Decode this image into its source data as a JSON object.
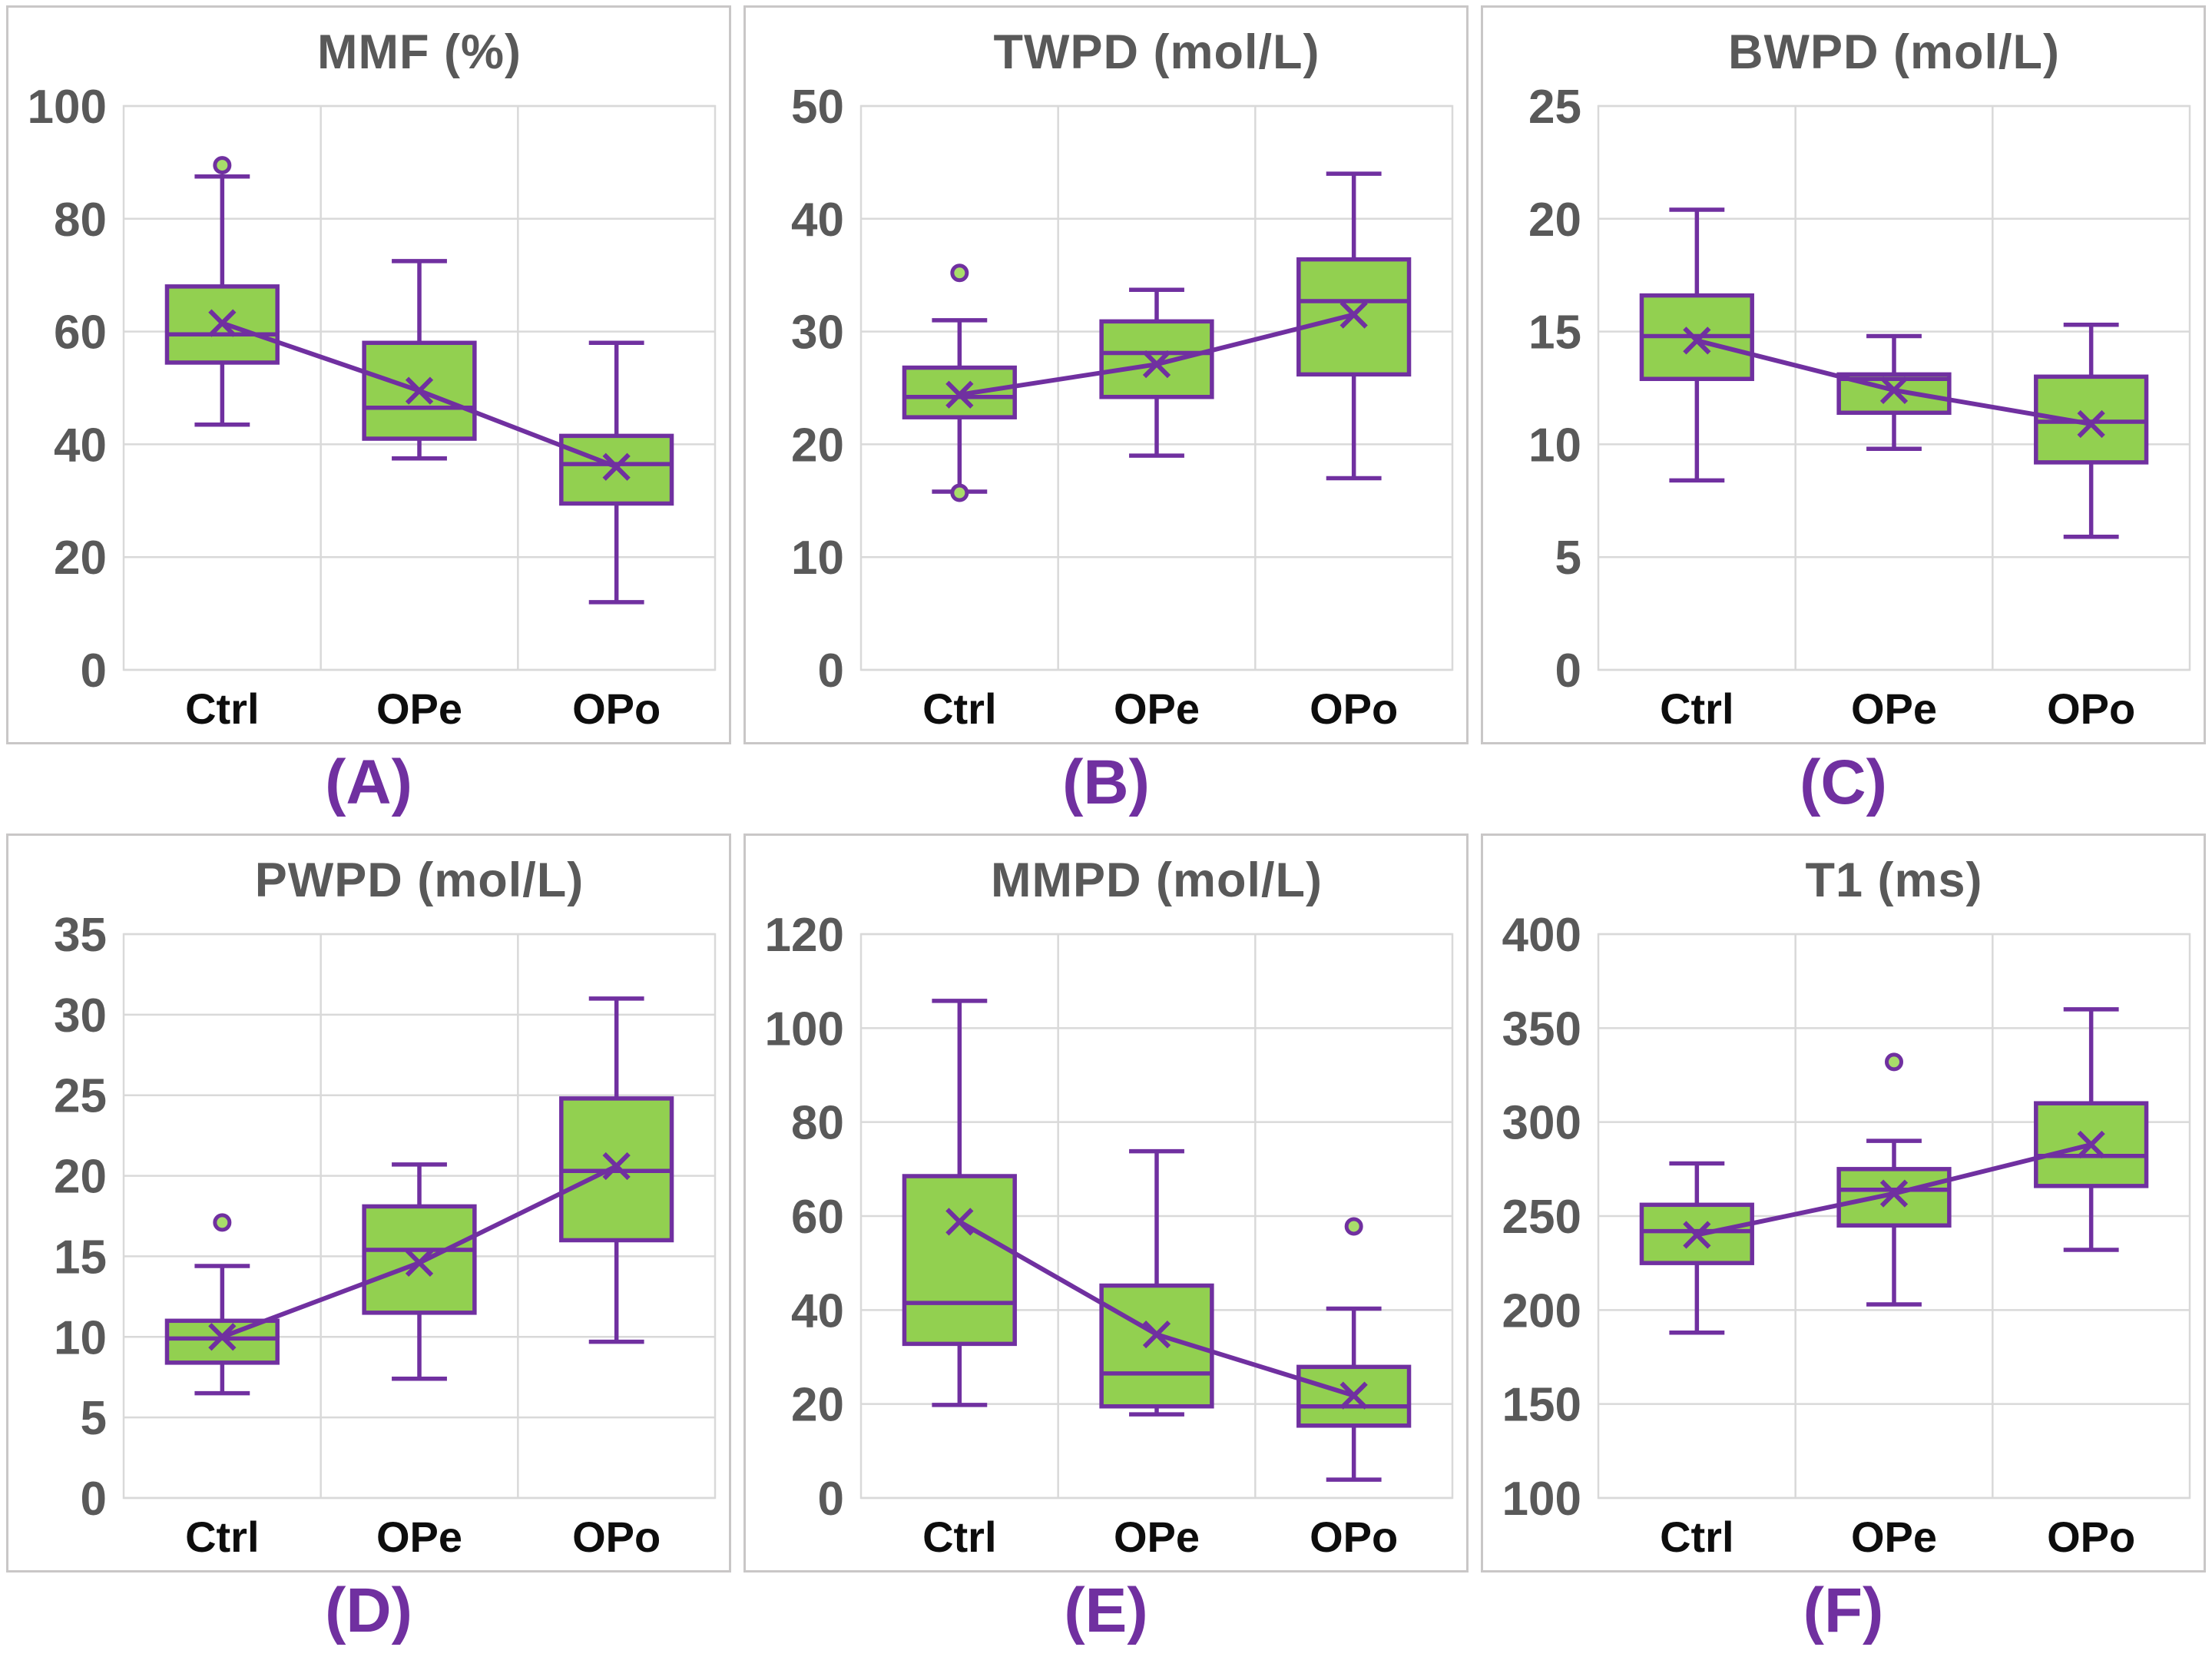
{
  "figure": {
    "kind": "box-plot-panel-grid",
    "rows": 2,
    "cols": 3,
    "background": "#ffffff"
  },
  "colors": {
    "box_fill": "#92d050",
    "box_border": "#7030a0",
    "whisker": "#7030a0",
    "median": "#7030a0",
    "mean_marker": "#7030a0",
    "mean_line": "#7030a0",
    "outlier_stroke": "#7030a0",
    "outlier_fill": "#a8dd6a",
    "gridline": "#d9d9d9",
    "plot_border": "#d9d9d9",
    "panel_border": "#c9c7c7",
    "title_text": "#595959",
    "tick_text": "#595959",
    "category_text": "#0d0d0d",
    "panel_letter_text": "#7030a0"
  },
  "chart_data": [
    {
      "id": "A",
      "type": "box",
      "title": "MMF (%)",
      "panel_label": "(A)",
      "categories": [
        "Ctrl",
        "OPe",
        "OPo"
      ],
      "ylim": [
        0,
        100
      ],
      "yticks": [
        0,
        20,
        40,
        60,
        80,
        100
      ],
      "grid": true,
      "legend": "none",
      "boxes": [
        {
          "category": "Ctrl",
          "whisker_low": 43.5,
          "q1": 54.5,
          "median": 59.5,
          "q3": 68.0,
          "whisker_high": 87.5,
          "mean": 61.5,
          "outliers": [
            89.5
          ]
        },
        {
          "category": "OPe",
          "whisker_low": 37.5,
          "q1": 41.0,
          "median": 46.5,
          "q3": 58.0,
          "whisker_high": 72.5,
          "mean": 49.5,
          "outliers": []
        },
        {
          "category": "OPo",
          "whisker_low": 12.0,
          "q1": 29.5,
          "median": 36.5,
          "q3": 41.5,
          "whisker_high": 58.0,
          "mean": 36.0,
          "outliers": []
        }
      ],
      "mean_series": [
        61.5,
        49.5,
        36.0
      ]
    },
    {
      "id": "B",
      "type": "box",
      "title": "TWPD (mol/L)",
      "panel_label": "(B)",
      "categories": [
        "Ctrl",
        "OPe",
        "OPo"
      ],
      "ylim": [
        0,
        50
      ],
      "yticks": [
        0,
        10,
        20,
        30,
        40,
        50
      ],
      "grid": true,
      "legend": "none",
      "boxes": [
        {
          "category": "Ctrl",
          "whisker_low": 15.8,
          "q1": 22.4,
          "median": 24.2,
          "q3": 26.8,
          "whisker_high": 31.0,
          "mean": 24.4,
          "outliers": [
            35.2,
            15.7
          ]
        },
        {
          "category": "OPe",
          "whisker_low": 19.0,
          "q1": 24.2,
          "median": 28.1,
          "q3": 30.9,
          "whisker_high": 33.7,
          "mean": 27.1,
          "outliers": []
        },
        {
          "category": "OPo",
          "whisker_low": 17.0,
          "q1": 26.2,
          "median": 32.7,
          "q3": 36.4,
          "whisker_high": 44.0,
          "mean": 31.5,
          "outliers": []
        }
      ],
      "mean_series": [
        24.4,
        27.1,
        31.5
      ]
    },
    {
      "id": "C",
      "type": "box",
      "title": "BWPD (mol/L)",
      "panel_label": "(C)",
      "categories": [
        "Ctrl",
        "OPe",
        "OPo"
      ],
      "ylim": [
        0,
        25
      ],
      "yticks": [
        0,
        5,
        10,
        15,
        20,
        25
      ],
      "grid": true,
      "legend": "none",
      "boxes": [
        {
          "category": "Ctrl",
          "whisker_low": 8.4,
          "q1": 12.9,
          "median": 14.8,
          "q3": 16.6,
          "whisker_high": 20.4,
          "mean": 14.6,
          "outliers": []
        },
        {
          "category": "OPe",
          "whisker_low": 9.8,
          "q1": 11.4,
          "median": 12.9,
          "q3": 13.1,
          "whisker_high": 14.8,
          "mean": 12.4,
          "outliers": []
        },
        {
          "category": "OPo",
          "whisker_low": 5.9,
          "q1": 9.2,
          "median": 11.0,
          "q3": 13.0,
          "whisker_high": 15.3,
          "mean": 10.9,
          "outliers": []
        }
      ],
      "mean_series": [
        14.6,
        12.4,
        10.9
      ]
    },
    {
      "id": "D",
      "type": "box",
      "title": "PWPD (mol/L)",
      "panel_label": "(D)",
      "categories": [
        "Ctrl",
        "OPe",
        "OPo"
      ],
      "ylim": [
        0,
        35
      ],
      "yticks": [
        0,
        5,
        10,
        15,
        20,
        25,
        30,
        35
      ],
      "grid": true,
      "legend": "none",
      "boxes": [
        {
          "category": "Ctrl",
          "whisker_low": 6.5,
          "q1": 8.4,
          "median": 9.9,
          "q3": 11.0,
          "whisker_high": 14.4,
          "mean": 10.0,
          "outliers": [
            17.1
          ]
        },
        {
          "category": "OPe",
          "whisker_low": 7.4,
          "q1": 11.5,
          "median": 15.4,
          "q3": 18.1,
          "whisker_high": 20.7,
          "mean": 14.6,
          "outliers": []
        },
        {
          "category": "OPo",
          "whisker_low": 9.7,
          "q1": 16.0,
          "median": 20.3,
          "q3": 24.8,
          "whisker_high": 31.0,
          "mean": 20.6,
          "outliers": []
        }
      ],
      "mean_series": [
        10.0,
        14.6,
        20.6
      ]
    },
    {
      "id": "E",
      "type": "box",
      "title": "MMPD (mol/L)",
      "panel_label": "(E)",
      "categories": [
        "Ctrl",
        "OPe",
        "OPo"
      ],
      "ylim": [
        0,
        120
      ],
      "yticks": [
        0,
        20,
        40,
        60,
        80,
        100,
        120
      ],
      "grid": true,
      "legend": "none",
      "boxes": [
        {
          "category": "Ctrl",
          "whisker_low": 19.8,
          "q1": 32.8,
          "median": 41.5,
          "q3": 68.5,
          "whisker_high": 105.8,
          "mean": 58.8,
          "outliers": []
        },
        {
          "category": "OPe",
          "whisker_low": 17.8,
          "q1": 19.5,
          "median": 26.5,
          "q3": 45.2,
          "whisker_high": 73.8,
          "mean": 34.8,
          "outliers": []
        },
        {
          "category": "OPo",
          "whisker_low": 3.9,
          "q1": 15.4,
          "median": 19.5,
          "q3": 27.9,
          "whisker_high": 40.3,
          "mean": 21.8,
          "outliers": [
            57.8
          ]
        }
      ],
      "mean_series": [
        58.8,
        34.8,
        21.8
      ]
    },
    {
      "id": "F",
      "type": "box",
      "title": "T1 (ms)",
      "panel_label": "(F)",
      "categories": [
        "Ctrl",
        "OPe",
        "OPo"
      ],
      "ylim": [
        100,
        400
      ],
      "yticks": [
        100,
        150,
        200,
        250,
        300,
        350,
        400
      ],
      "grid": true,
      "legend": "none",
      "boxes": [
        {
          "category": "Ctrl",
          "whisker_low": 188,
          "q1": 225,
          "median": 242,
          "q3": 256,
          "whisker_high": 278,
          "mean": 240,
          "outliers": []
        },
        {
          "category": "OPe",
          "whisker_low": 203,
          "q1": 245,
          "median": 264,
          "q3": 275,
          "whisker_high": 290,
          "mean": 262,
          "outliers": [
            332
          ]
        },
        {
          "category": "OPo",
          "whisker_low": 232,
          "q1": 266,
          "median": 282,
          "q3": 310,
          "whisker_high": 360,
          "mean": 288,
          "outliers": []
        }
      ],
      "mean_series": [
        240,
        262,
        288
      ]
    }
  ]
}
